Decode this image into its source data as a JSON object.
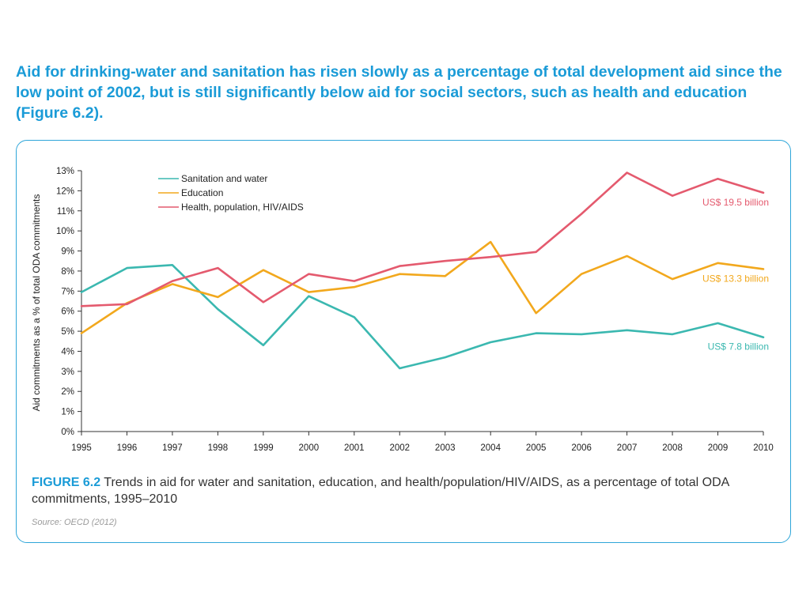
{
  "headline": "Aid for drinking-water and sanitation has risen slowly as a percentage of total development aid since the low point of 2002, but is still significantly below aid for social sectors, such as health and education (Figure 6.2).",
  "caption": {
    "label": "FIGURE 6.2",
    "text": " Trends in aid for water and sanitation, education, and health/population/HIV/AIDS, as a percentage of total ODA commitments, 1995–2010"
  },
  "source": "Source: OECD (2012)",
  "colors": {
    "frame": "#2ea6d9",
    "headline": "#1a9bd7"
  },
  "chart_data": {
    "type": "line",
    "ylabel": "Aid commitments as a % of total ODA commitments",
    "xlabel": "",
    "ylim": [
      0,
      13
    ],
    "y_ticks": [
      0,
      1,
      2,
      3,
      4,
      5,
      6,
      7,
      8,
      9,
      10,
      11,
      12,
      13
    ],
    "y_tick_labels": [
      "0%",
      "1%",
      "2%",
      "3%",
      "4%",
      "5%",
      "6%",
      "7%",
      "8%",
      "9%",
      "10%",
      "11%",
      "12%",
      "13%"
    ],
    "x": [
      "1995",
      "1996",
      "1997",
      "1998",
      "1999",
      "2000",
      "2001",
      "2002",
      "2003",
      "2004",
      "2005",
      "2006",
      "2007",
      "2008",
      "2009",
      "2010"
    ],
    "grid": false,
    "legend_position": "top-left",
    "series": [
      {
        "name": "Sanitation and water",
        "color": "#3bb8b0",
        "values": [
          6.95,
          8.15,
          8.3,
          6.1,
          4.3,
          6.75,
          5.7,
          3.15,
          3.7,
          4.45,
          4.9,
          4.85,
          5.05,
          4.85,
          5.4,
          4.7
        ],
        "annotation": "US$ 7.8 billion"
      },
      {
        "name": "Education",
        "color": "#f2a81d",
        "values": [
          4.9,
          6.4,
          7.35,
          6.7,
          8.05,
          6.95,
          7.2,
          7.85,
          7.75,
          9.45,
          5.9,
          7.85,
          8.75,
          7.6,
          8.4,
          8.1
        ],
        "annotation": "US$ 13.3 billion"
      },
      {
        "name": "Health, population, HIV/AIDS",
        "color": "#e45a6e",
        "values": [
          6.25,
          6.35,
          7.5,
          8.15,
          6.45,
          7.85,
          7.5,
          8.25,
          8.5,
          8.7,
          8.95,
          10.85,
          12.9,
          11.75,
          12.6,
          11.9
        ],
        "annotation": "US$ 19.5 billion"
      }
    ]
  }
}
